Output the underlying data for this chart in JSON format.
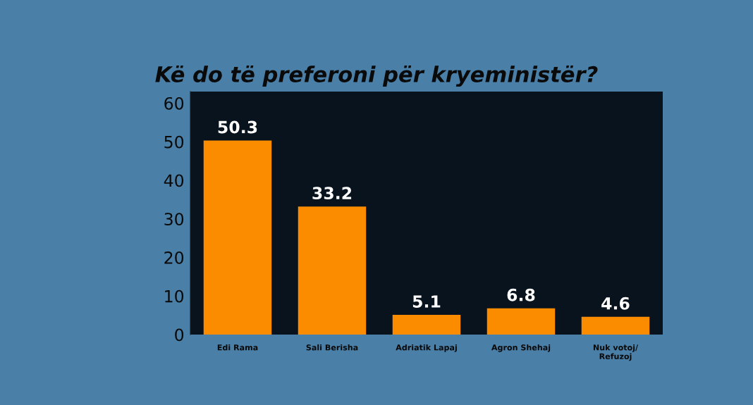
{
  "chart_data": {
    "type": "bar",
    "title": "Kë do të preferoni për kryeministër?",
    "categories": [
      "Edi Rama",
      "Sali Berisha",
      "Adriatik Lapaj",
      "Agron Shehaj",
      "Nuk votoj/\nRefuzoj"
    ],
    "values": [
      50.3,
      33.2,
      5.1,
      6.8,
      4.6
    ],
    "color": "#fb8c00",
    "ylim": [
      0,
      63
    ],
    "yticks": [
      0,
      10,
      20,
      30,
      40,
      50,
      60
    ],
    "grid": false,
    "data_labels": true
  }
}
